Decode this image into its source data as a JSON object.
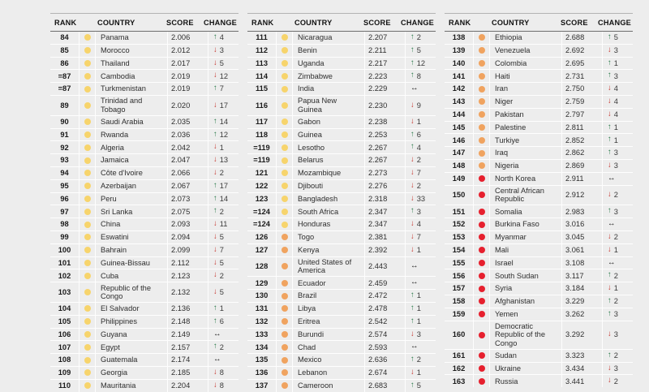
{
  "colors": {
    "background": "#ededed",
    "tier_yellow": "#f7d46c",
    "tier_orange": "#f0a35f",
    "tier_red": "#e6202e",
    "arrow_up_green": "#2b7a4b",
    "arrow_down_red": "#c4332b",
    "arrow_same_black": "#141414"
  },
  "glyphs": {
    "up": "↑",
    "down": "↓",
    "same": "↔"
  },
  "chart_data": {
    "type": "table",
    "title": "Peace index country rankings 84-163 (score and year-on-year change)",
    "columns": [
      "RANK",
      "COUNTRY",
      "SCORE",
      "CHANGE"
    ],
    "legend_tiers": [
      "yellow",
      "orange",
      "red"
    ],
    "panels": [
      {
        "rows": [
          {
            "rank": "84",
            "country": "Panama",
            "score": "2.006",
            "direction": "up",
            "change": "4",
            "tier": "yellow"
          },
          {
            "rank": "85",
            "country": "Morocco",
            "score": "2.012",
            "direction": "down",
            "change": "3",
            "tier": "yellow"
          },
          {
            "rank": "86",
            "country": "Thailand",
            "score": "2.017",
            "direction": "down",
            "change": "5",
            "tier": "yellow"
          },
          {
            "rank": "=87",
            "country": "Cambodia",
            "score": "2.019",
            "direction": "down",
            "change": "12",
            "tier": "yellow"
          },
          {
            "rank": "=87",
            "country": "Turkmenistan",
            "score": "2.019",
            "direction": "up",
            "change": "7",
            "tier": "yellow"
          },
          {
            "rank": "89",
            "country": "Trinidad and Tobago",
            "score": "2.020",
            "direction": "down",
            "change": "17",
            "tier": "yellow"
          },
          {
            "rank": "90",
            "country": "Saudi Arabia",
            "score": "2.035",
            "direction": "up",
            "change": "14",
            "tier": "yellow"
          },
          {
            "rank": "91",
            "country": "Rwanda",
            "score": "2.036",
            "direction": "up",
            "change": "12",
            "tier": "yellow"
          },
          {
            "rank": "92",
            "country": "Algeria",
            "score": "2.042",
            "direction": "down",
            "change": "1",
            "tier": "yellow"
          },
          {
            "rank": "93",
            "country": "Jamaica",
            "score": "2.047",
            "direction": "down",
            "change": "13",
            "tier": "yellow"
          },
          {
            "rank": "94",
            "country": "Côte d'Ivoire",
            "score": "2.066",
            "direction": "down",
            "change": "2",
            "tier": "yellow"
          },
          {
            "rank": "95",
            "country": "Azerbaijan",
            "score": "2.067",
            "direction": "up",
            "change": "17",
            "tier": "yellow"
          },
          {
            "rank": "96",
            "country": "Peru",
            "score": "2.073",
            "direction": "up",
            "change": "14",
            "tier": "yellow"
          },
          {
            "rank": "97",
            "country": "Sri Lanka",
            "score": "2.075",
            "direction": "up",
            "change": "2",
            "tier": "yellow"
          },
          {
            "rank": "98",
            "country": "China",
            "score": "2.093",
            "direction": "down",
            "change": "11",
            "tier": "yellow"
          },
          {
            "rank": "99",
            "country": "Eswatini",
            "score": "2.094",
            "direction": "down",
            "change": "5",
            "tier": "yellow"
          },
          {
            "rank": "100",
            "country": "Bahrain",
            "score": "2.099",
            "direction": "down",
            "change": "7",
            "tier": "yellow"
          },
          {
            "rank": "101",
            "country": "Guinea-Bissau",
            "score": "2.112",
            "direction": "down",
            "change": "5",
            "tier": "yellow"
          },
          {
            "rank": "102",
            "country": "Cuba",
            "score": "2.123",
            "direction": "down",
            "change": "2",
            "tier": "yellow"
          },
          {
            "rank": "103",
            "country": "Republic of the Congo",
            "score": "2.132",
            "direction": "down",
            "change": "5",
            "tier": "yellow"
          },
          {
            "rank": "104",
            "country": "El Salvador",
            "score": "2.136",
            "direction": "up",
            "change": "1",
            "tier": "yellow"
          },
          {
            "rank": "105",
            "country": "Philippines",
            "score": "2.148",
            "direction": "up",
            "change": "6",
            "tier": "yellow"
          },
          {
            "rank": "106",
            "country": "Guyana",
            "score": "2.149",
            "direction": "same",
            "change": "",
            "tier": "yellow"
          },
          {
            "rank": "107",
            "country": "Egypt",
            "score": "2.157",
            "direction": "up",
            "change": "2",
            "tier": "yellow"
          },
          {
            "rank": "108",
            "country": "Guatemala",
            "score": "2.174",
            "direction": "same",
            "change": "",
            "tier": "yellow"
          },
          {
            "rank": "109",
            "country": "Georgia",
            "score": "2.185",
            "direction": "down",
            "change": "8",
            "tier": "yellow"
          },
          {
            "rank": "110",
            "country": "Mauritania",
            "score": "2.204",
            "direction": "down",
            "change": "8",
            "tier": "yellow"
          }
        ]
      },
      {
        "rows": [
          {
            "rank": "111",
            "country": "Nicaragua",
            "score": "2.207",
            "direction": "up",
            "change": "2",
            "tier": "yellow"
          },
          {
            "rank": "112",
            "country": "Benin",
            "score": "2.211",
            "direction": "up",
            "change": "5",
            "tier": "yellow"
          },
          {
            "rank": "113",
            "country": "Uganda",
            "score": "2.217",
            "direction": "up",
            "change": "12",
            "tier": "yellow"
          },
          {
            "rank": "114",
            "country": "Zimbabwe",
            "score": "2.223",
            "direction": "up",
            "change": "8",
            "tier": "yellow"
          },
          {
            "rank": "115",
            "country": "India",
            "score": "2.229",
            "direction": "same",
            "change": "",
            "tier": "yellow"
          },
          {
            "rank": "116",
            "country": "Papua New Guinea",
            "score": "2.230",
            "direction": "down",
            "change": "9",
            "tier": "yellow"
          },
          {
            "rank": "117",
            "country": "Gabon",
            "score": "2.238",
            "direction": "down",
            "change": "1",
            "tier": "yellow"
          },
          {
            "rank": "118",
            "country": "Guinea",
            "score": "2.253",
            "direction": "up",
            "change": "6",
            "tier": "yellow"
          },
          {
            "rank": "=119",
            "country": "Lesotho",
            "score": "2.267",
            "direction": "up",
            "change": "4",
            "tier": "yellow"
          },
          {
            "rank": "=119",
            "country": "Belarus",
            "score": "2.267",
            "direction": "down",
            "change": "2",
            "tier": "yellow"
          },
          {
            "rank": "121",
            "country": "Mozambique",
            "score": "2.273",
            "direction": "down",
            "change": "7",
            "tier": "yellow"
          },
          {
            "rank": "122",
            "country": "Djibouti",
            "score": "2.276",
            "direction": "down",
            "change": "2",
            "tier": "yellow"
          },
          {
            "rank": "123",
            "country": "Bangladesh",
            "score": "2.318",
            "direction": "down",
            "change": "33",
            "tier": "yellow"
          },
          {
            "rank": "=124",
            "country": "South Africa",
            "score": "2.347",
            "direction": "up",
            "change": "3",
            "tier": "yellow"
          },
          {
            "rank": "=124",
            "country": "Honduras",
            "score": "2.347",
            "direction": "down",
            "change": "4",
            "tier": "yellow"
          },
          {
            "rank": "126",
            "country": "Togo",
            "score": "2.381",
            "direction": "down",
            "change": "7",
            "tier": "orange"
          },
          {
            "rank": "127",
            "country": "Kenya",
            "score": "2.392",
            "direction": "down",
            "change": "1",
            "tier": "orange"
          },
          {
            "rank": "128",
            "country": "United States of America",
            "score": "2.443",
            "direction": "same",
            "change": "",
            "tier": "orange"
          },
          {
            "rank": "129",
            "country": "Ecuador",
            "score": "2.459",
            "direction": "same",
            "change": "",
            "tier": "orange"
          },
          {
            "rank": "130",
            "country": "Brazil",
            "score": "2.472",
            "direction": "up",
            "change": "1",
            "tier": "orange"
          },
          {
            "rank": "131",
            "country": "Libya",
            "score": "2.478",
            "direction": "up",
            "change": "1",
            "tier": "orange"
          },
          {
            "rank": "132",
            "country": "Eritrea",
            "score": "2.542",
            "direction": "up",
            "change": "1",
            "tier": "orange"
          },
          {
            "rank": "133",
            "country": "Burundi",
            "score": "2.574",
            "direction": "down",
            "change": "3",
            "tier": "orange"
          },
          {
            "rank": "134",
            "country": "Chad",
            "score": "2.593",
            "direction": "same",
            "change": "",
            "tier": "orange"
          },
          {
            "rank": "135",
            "country": "Mexico",
            "score": "2.636",
            "direction": "up",
            "change": "2",
            "tier": "orange"
          },
          {
            "rank": "136",
            "country": "Lebanon",
            "score": "2.674",
            "direction": "down",
            "change": "1",
            "tier": "orange"
          },
          {
            "rank": "137",
            "country": "Cameroon",
            "score": "2.683",
            "direction": "up",
            "change": "5",
            "tier": "orange"
          }
        ]
      },
      {
        "rows": [
          {
            "rank": "138",
            "country": "Ethiopia",
            "score": "2.688",
            "direction": "up",
            "change": "5",
            "tier": "orange"
          },
          {
            "rank": "139",
            "country": "Venezuela",
            "score": "2.692",
            "direction": "down",
            "change": "3",
            "tier": "orange"
          },
          {
            "rank": "140",
            "country": "Colombia",
            "score": "2.695",
            "direction": "up",
            "change": "1",
            "tier": "orange"
          },
          {
            "rank": "141",
            "country": "Haiti",
            "score": "2.731",
            "direction": "up",
            "change": "3",
            "tier": "orange"
          },
          {
            "rank": "142",
            "country": "Iran",
            "score": "2.750",
            "direction": "down",
            "change": "4",
            "tier": "orange"
          },
          {
            "rank": "143",
            "country": "Niger",
            "score": "2.759",
            "direction": "down",
            "change": "4",
            "tier": "orange"
          },
          {
            "rank": "144",
            "country": "Pakistan",
            "score": "2.797",
            "direction": "down",
            "change": "4",
            "tier": "orange"
          },
          {
            "rank": "145",
            "country": "Palestine",
            "score": "2.811",
            "direction": "up",
            "change": "1",
            "tier": "orange"
          },
          {
            "rank": "146",
            "country": "Turkiye",
            "score": "2.852",
            "direction": "up",
            "change": "1",
            "tier": "orange"
          },
          {
            "rank": "147",
            "country": "Iraq",
            "score": "2.862",
            "direction": "up",
            "change": "3",
            "tier": "orange"
          },
          {
            "rank": "148",
            "country": "Nigeria",
            "score": "2.869",
            "direction": "down",
            "change": "3",
            "tier": "orange"
          },
          {
            "rank": "149",
            "country": "North Korea",
            "score": "2.911",
            "direction": "same",
            "change": "",
            "tier": "red"
          },
          {
            "rank": "150",
            "country": "Central African Republic",
            "score": "2.912",
            "direction": "down",
            "change": "2",
            "tier": "red"
          },
          {
            "rank": "151",
            "country": "Somalia",
            "score": "2.983",
            "direction": "up",
            "change": "3",
            "tier": "red"
          },
          {
            "rank": "152",
            "country": "Burkina Faso",
            "score": "3.016",
            "direction": "same",
            "change": "",
            "tier": "red"
          },
          {
            "rank": "153",
            "country": "Myanmar",
            "score": "3.045",
            "direction": "down",
            "change": "2",
            "tier": "red"
          },
          {
            "rank": "154",
            "country": "Mali",
            "score": "3.061",
            "direction": "down",
            "change": "1",
            "tier": "red"
          },
          {
            "rank": "155",
            "country": "Israel",
            "score": "3.108",
            "direction": "same",
            "change": "",
            "tier": "red"
          },
          {
            "rank": "156",
            "country": "South Sudan",
            "score": "3.117",
            "direction": "up",
            "change": "2",
            "tier": "red"
          },
          {
            "rank": "157",
            "country": "Syria",
            "score": "3.184",
            "direction": "down",
            "change": "1",
            "tier": "red"
          },
          {
            "rank": "158",
            "country": "Afghanistan",
            "score": "3.229",
            "direction": "up",
            "change": "2",
            "tier": "red"
          },
          {
            "rank": "159",
            "country": "Yemen",
            "score": "3.262",
            "direction": "up",
            "change": "3",
            "tier": "red"
          },
          {
            "rank": "160",
            "country": "Democratic Republic of the Congo",
            "score": "3.292",
            "direction": "down",
            "change": "3",
            "tier": "red"
          },
          {
            "rank": "161",
            "country": "Sudan",
            "score": "3.323",
            "direction": "up",
            "change": "2",
            "tier": "red"
          },
          {
            "rank": "162",
            "country": "Ukraine",
            "score": "3.434",
            "direction": "down",
            "change": "3",
            "tier": "red"
          },
          {
            "rank": "163",
            "country": "Russia",
            "score": "3.441",
            "direction": "down",
            "change": "2",
            "tier": "red"
          }
        ]
      }
    ]
  }
}
